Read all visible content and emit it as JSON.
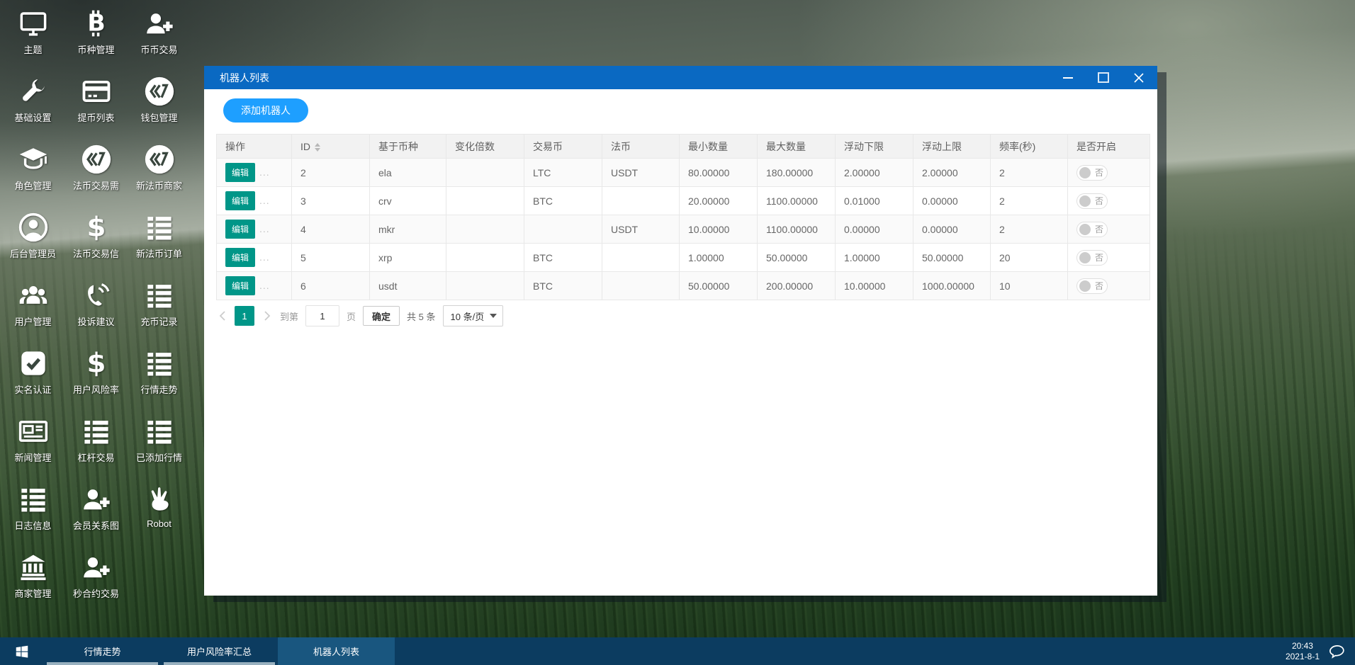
{
  "colors": {
    "title_bar": "#0a69c2",
    "primary_blue": "#1e9fff",
    "teal": "#009688",
    "taskbar": "#0c3c60",
    "taskbar_active": "#19567f"
  },
  "desktop": {
    "icons": [
      {
        "label": "主题",
        "icon": "monitor"
      },
      {
        "label": "币种管理",
        "icon": "bitcoin"
      },
      {
        "label": "币币交易",
        "icon": "user-plus"
      },
      {
        "label": "基础设置",
        "icon": "wrench"
      },
      {
        "label": "提币列表",
        "icon": "credit-card"
      },
      {
        "label": "钱包管理",
        "icon": "coin"
      },
      {
        "label": "角色管理",
        "icon": "grad-cap"
      },
      {
        "label": "法币交易需",
        "icon": "coin"
      },
      {
        "label": "新法币商家",
        "icon": "coin"
      },
      {
        "label": "后台管理员",
        "icon": "user-circle"
      },
      {
        "label": "法币交易信",
        "icon": "dollar"
      },
      {
        "label": "新法币订单",
        "icon": "list"
      },
      {
        "label": "用户管理",
        "icon": "users"
      },
      {
        "label": "投诉建议",
        "icon": "phone"
      },
      {
        "label": "充币记录",
        "icon": "list"
      },
      {
        "label": "实名认证",
        "icon": "check-square"
      },
      {
        "label": "用户风险率",
        "icon": "dollar"
      },
      {
        "label": "行情走势",
        "icon": "list"
      },
      {
        "label": "新闻管理",
        "icon": "newspaper"
      },
      {
        "label": "杠杆交易",
        "icon": "list"
      },
      {
        "label": "已添加行情",
        "icon": "list"
      },
      {
        "label": "日志信息",
        "icon": "list"
      },
      {
        "label": "会员关系图",
        "icon": "user-plus"
      },
      {
        "label": "Robot",
        "icon": "hand"
      },
      {
        "label": "商家管理",
        "icon": "bank"
      },
      {
        "label": "秒合约交易",
        "icon": "user-plus"
      }
    ]
  },
  "window": {
    "title": "机器人列表",
    "controls": [
      "minimize",
      "maximize",
      "close"
    ],
    "add_button": "添加机器人",
    "table": {
      "columns": [
        "操作",
        "ID",
        "基于币种",
        "变化倍数",
        "交易币",
        "法币",
        "最小数量",
        "最大数量",
        "浮动下限",
        "浮动上限",
        "频率(秒)",
        "是否开启"
      ],
      "edit_label": "编辑",
      "more_label": "...",
      "toggle_off": "否",
      "rows": [
        {
          "id": "2",
          "base": "ela",
          "multiple": "",
          "trade": "LTC",
          "fiat": "USDT",
          "min": "80.00000",
          "max": "180.00000",
          "lower": "2.00000",
          "upper": "2.00000",
          "freq": "2"
        },
        {
          "id": "3",
          "base": "crv",
          "multiple": "",
          "trade": "BTC",
          "fiat": "",
          "min": "20.00000",
          "max": "1100.00000",
          "lower": "0.01000",
          "upper": "0.00000",
          "freq": "2"
        },
        {
          "id": "4",
          "base": "mkr",
          "multiple": "",
          "trade": "",
          "fiat": "USDT",
          "min": "10.00000",
          "max": "1100.00000",
          "lower": "0.00000",
          "upper": "0.00000",
          "freq": "2"
        },
        {
          "id": "5",
          "base": "xrp",
          "multiple": "",
          "trade": "BTC",
          "fiat": "",
          "min": "1.00000",
          "max": "50.00000",
          "lower": "1.00000",
          "upper": "50.00000",
          "freq": "20"
        },
        {
          "id": "6",
          "base": "usdt",
          "multiple": "",
          "trade": "BTC",
          "fiat": "",
          "min": "50.00000",
          "max": "200.00000",
          "lower": "10.00000",
          "upper": "1000.00000",
          "freq": "10"
        }
      ]
    },
    "pagination": {
      "page": "1",
      "goto_label": "到第",
      "goto_value": "1",
      "page_unit": "页",
      "confirm": "确定",
      "total": "共 5 条",
      "per_page": "10 条/页"
    }
  },
  "taskbar": {
    "start_icon": "windows-logo",
    "items": [
      {
        "label": "行情走势"
      },
      {
        "label": "用户风险率汇总"
      },
      {
        "label": "机器人列表"
      }
    ],
    "clock": {
      "time": "20:43",
      "date": "2021-8-1"
    },
    "tray_icon": "chat-bubble"
  }
}
